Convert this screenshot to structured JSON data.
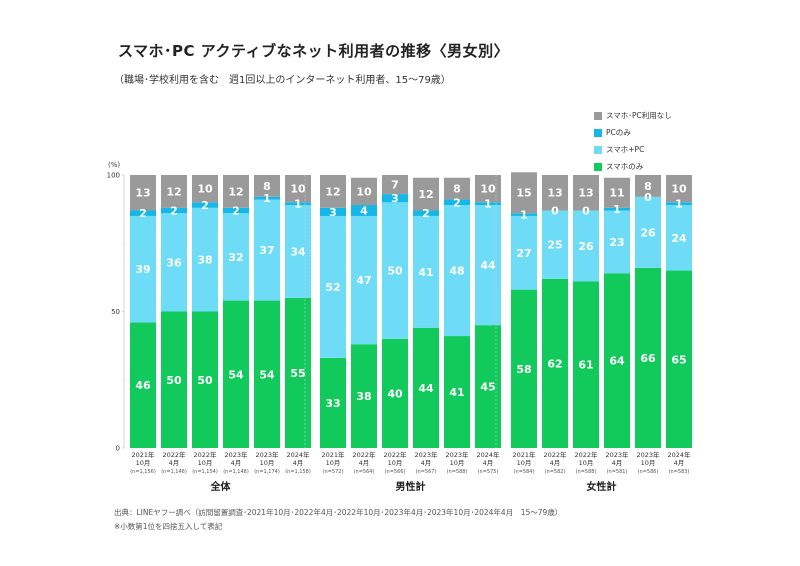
{
  "title": "スマホ･PC アクティブなネット利用者の推移〈男女別〉",
  "subtitle": "（職場･学校利用を含む　週1回以上のインターネット利用者、15〜79歳）",
  "footer": {
    "source": "出典：LINEヤフー調べ（訪問留置調査･2021年10月･2022年4月･2022年10月･2023年4月･2023年10月･2024年4月　15〜79歳）",
    "note": "※小数第1位を四捨五入して表記"
  },
  "chart_data": {
    "type": "bar",
    "stacked": true,
    "ylabel": "(%)",
    "ylim": [
      0,
      100
    ],
    "yticks": [
      "0",
      "50",
      "100"
    ],
    "legend_position": "top-right",
    "colors": {
      "smartphone_only": "#12c95c",
      "smartphone_pc": "#6edcf6",
      "pc_only": "#14b7e8",
      "none": "#9a9a9a"
    },
    "legend": [
      {
        "key": "none",
        "label": "スマホ･PC利用なし"
      },
      {
        "key": "pc_only",
        "label": "PCのみ"
      },
      {
        "key": "smartphone_pc",
        "label": "スマホ+PC"
      },
      {
        "key": "smartphone_only",
        "label": "スマホのみ"
      }
    ],
    "groups": [
      {
        "name": "全体",
        "categories": [
          {
            "year": "2021年",
            "month": "10月",
            "n": "(n=1,156)"
          },
          {
            "year": "2022年",
            "month": "4月",
            "n": "(n=1,146)"
          },
          {
            "year": "2022年",
            "month": "10月",
            "n": "(n=1,154)"
          },
          {
            "year": "2023年",
            "month": "4月",
            "n": "(n=1,148)"
          },
          {
            "year": "2023年",
            "month": "10月",
            "n": "(n=1,174)"
          },
          {
            "year": "2024年",
            "month": "4月",
            "n": "(n=1,158)"
          }
        ],
        "series": {
          "smartphone_only": [
            46,
            50,
            50,
            54,
            54,
            55
          ],
          "smartphone_pc": [
            39,
            36,
            38,
            32,
            37,
            34
          ],
          "pc_only": [
            2,
            2,
            2,
            2,
            1,
            1
          ],
          "none": [
            13,
            12,
            10,
            12,
            8,
            10
          ]
        }
      },
      {
        "name": "男性計",
        "categories": [
          {
            "year": "2021年",
            "month": "10月",
            "n": "(n=572)"
          },
          {
            "year": "2022年",
            "month": "4月",
            "n": "(n=564)"
          },
          {
            "year": "2022年",
            "month": "10月",
            "n": "(n=566)"
          },
          {
            "year": "2023年",
            "month": "4月",
            "n": "(n=567)"
          },
          {
            "year": "2023年",
            "month": "10月",
            "n": "(n=588)"
          },
          {
            "year": "2024年",
            "month": "4月",
            "n": "(n=575)"
          }
        ],
        "series": {
          "smartphone_only": [
            33,
            38,
            40,
            44,
            41,
            45
          ],
          "smartphone_pc": [
            52,
            47,
            50,
            41,
            48,
            44
          ],
          "pc_only": [
            3,
            4,
            3,
            2,
            2,
            1
          ],
          "none": [
            12,
            10,
            7,
            12,
            8,
            10
          ]
        }
      },
      {
        "name": "女性計",
        "categories": [
          {
            "year": "2021年",
            "month": "10月",
            "n": "(n=584)"
          },
          {
            "year": "2022年",
            "month": "4月",
            "n": "(n=582)"
          },
          {
            "year": "2022年",
            "month": "10月",
            "n": "(n=588)"
          },
          {
            "year": "2023年",
            "month": "4月",
            "n": "(n=581)"
          },
          {
            "year": "2023年",
            "month": "10月",
            "n": "(n=586)"
          },
          {
            "year": "2024年",
            "month": "4月",
            "n": "(n=583)"
          }
        ],
        "series": {
          "smartphone_only": [
            58,
            62,
            61,
            64,
            66,
            65
          ],
          "smartphone_pc": [
            27,
            25,
            26,
            23,
            26,
            24
          ],
          "pc_only": [
            1,
            0,
            0,
            1,
            0,
            1
          ],
          "none": [
            15,
            13,
            13,
            11,
            8,
            10
          ]
        }
      }
    ]
  }
}
